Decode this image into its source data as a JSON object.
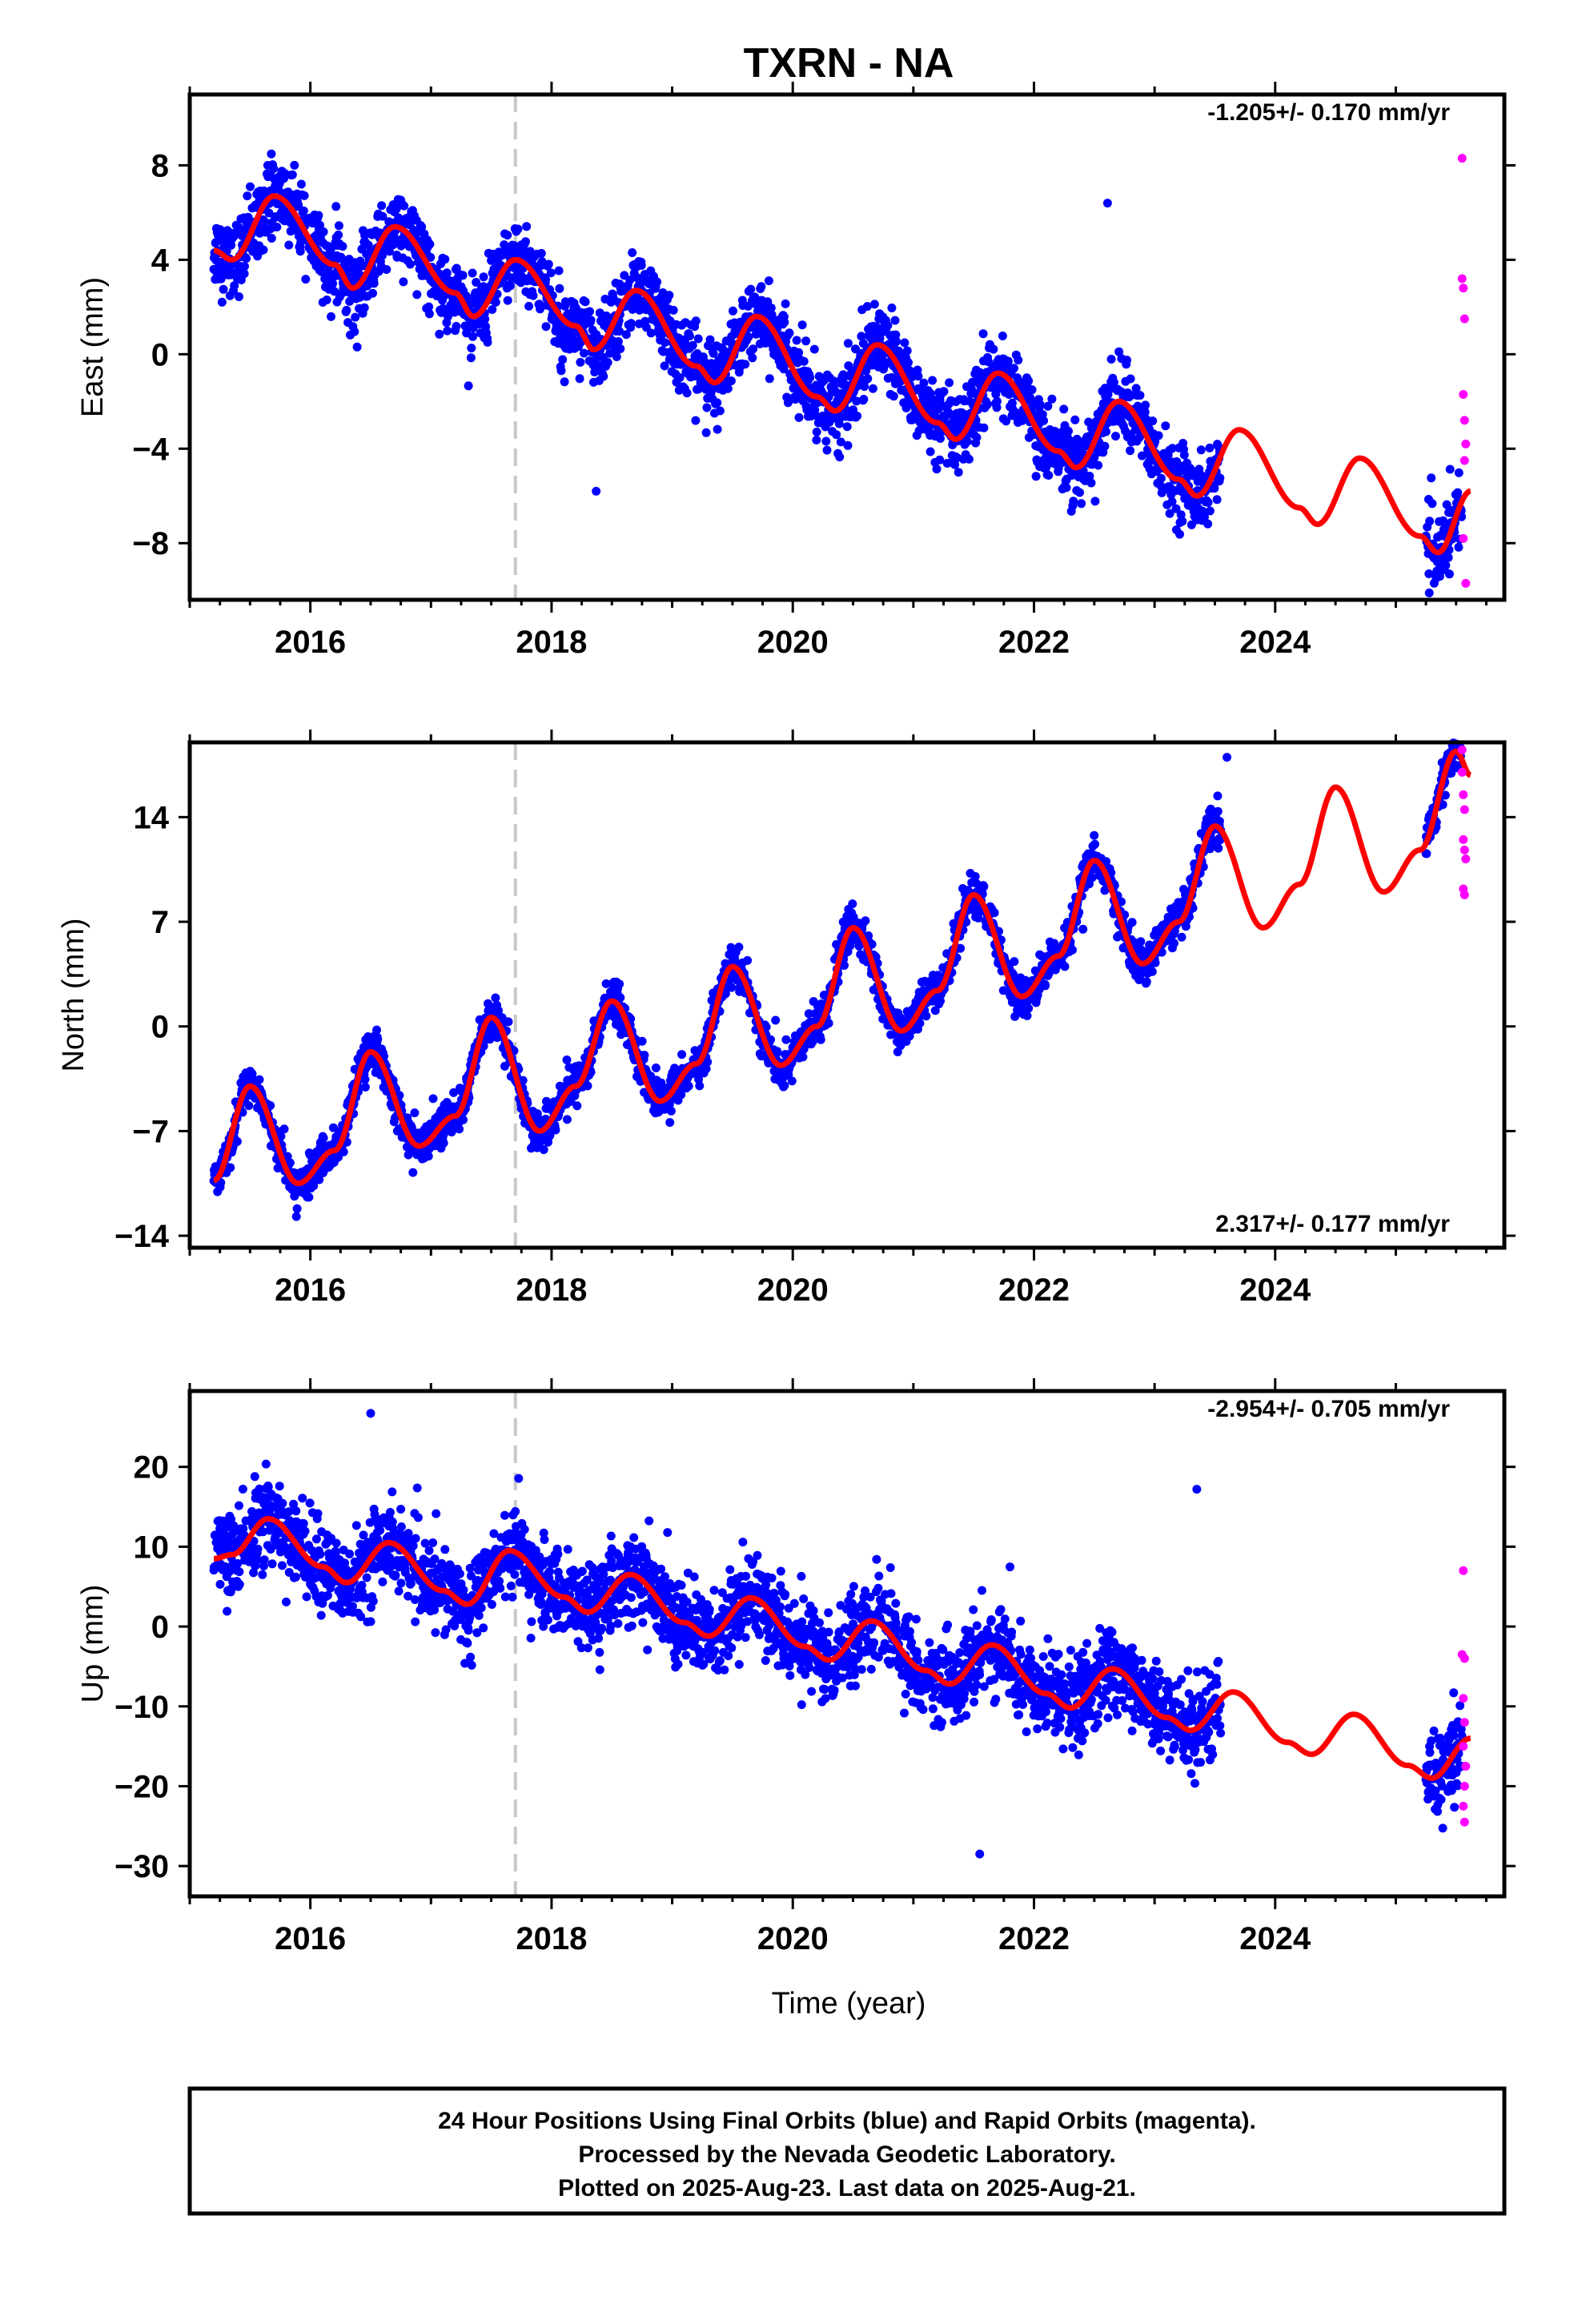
{
  "title": "TXRN - NA",
  "xlabel": "Time (year)",
  "footer": {
    "line1": "24 Hour Positions Using Final Orbits (blue) and Rapid Orbits (magenta).",
    "line2": "Processed by the Nevada Geodetic Laboratory.",
    "line3": "Plotted on 2025-Aug-23. Last data on 2025-Aug-21."
  },
  "colors": {
    "final_orbits": "#0000ff",
    "rapid_orbits": "#ff00ff",
    "model": "#ff0000",
    "event_line": "#c8c8c8"
  },
  "chart_data": [
    {
      "type": "scatter",
      "component": "east",
      "ylabel": "East (mm)",
      "rate_label": "-1.205+/- 0.170 mm/yr",
      "xlim": [
        2015.0,
        2025.9
      ],
      "ylim": [
        -10.4,
        11
      ],
      "xticks": [
        2016,
        2018,
        2020,
        2022,
        2024
      ],
      "yticks": [
        -8,
        -4,
        0,
        4,
        8
      ],
      "event_line_x": 2017.7,
      "grid": false,
      "rapid_points": [
        [
          2025.55,
          8.3
        ],
        [
          2025.55,
          3.2
        ],
        [
          2025.56,
          2.8
        ],
        [
          2025.57,
          1.5
        ],
        [
          2025.56,
          -1.7
        ],
        [
          2025.57,
          -2.8
        ],
        [
          2025.58,
          -3.8
        ],
        [
          2025.57,
          -4.5
        ],
        [
          2025.56,
          -7.8
        ],
        [
          2025.58,
          -9.7
        ]
      ],
      "outliers": [
        [
          2018.37,
          -5.8
        ],
        [
          2022.61,
          6.4
        ]
      ],
      "model_knots": [
        [
          2015.2,
          4.4
        ],
        [
          2015.35,
          4.0
        ],
        [
          2015.7,
          6.7
        ],
        [
          2016.2,
          3.8
        ],
        [
          2016.35,
          2.8
        ],
        [
          2016.7,
          5.4
        ],
        [
          2017.2,
          2.6
        ],
        [
          2017.35,
          1.6
        ],
        [
          2017.7,
          4.0
        ],
        [
          2018.2,
          1.2
        ],
        [
          2018.35,
          0.2
        ],
        [
          2018.7,
          2.7
        ],
        [
          2019.2,
          -0.5
        ],
        [
          2019.35,
          -1.2
        ],
        [
          2019.7,
          1.6
        ],
        [
          2020.2,
          -1.8
        ],
        [
          2020.35,
          -2.4
        ],
        [
          2020.7,
          0.4
        ],
        [
          2021.2,
          -2.9
        ],
        [
          2021.35,
          -3.6
        ],
        [
          2021.7,
          -0.8
        ],
        [
          2022.2,
          -4.1
        ],
        [
          2022.35,
          -4.8
        ],
        [
          2022.7,
          -2.0
        ],
        [
          2023.2,
          -5.3
        ],
        [
          2023.35,
          -6.0
        ],
        [
          2023.7,
          -3.2
        ],
        [
          2024.2,
          -6.5
        ],
        [
          2024.35,
          -7.2
        ],
        [
          2024.7,
          -4.4
        ],
        [
          2025.2,
          -7.7
        ],
        [
          2025.35,
          -8.4
        ],
        [
          2025.62,
          -5.8
        ]
      ],
      "segments": [
        [
          2015.2,
          2023.55
        ],
        [
          2025.25,
          2025.55
        ]
      ],
      "scatter_sigma": 1.4
    },
    {
      "type": "scatter",
      "component": "north",
      "ylabel": "North (mm)",
      "rate_label": "2.317+/- 0.177 mm/yr",
      "xlim": [
        2015.0,
        2025.9
      ],
      "ylim": [
        -14.8,
        19
      ],
      "xticks": [
        2016,
        2018,
        2020,
        2022,
        2024
      ],
      "yticks": [
        -14,
        -7,
        0,
        7,
        14
      ],
      "event_line_x": 2017.7,
      "grid": false,
      "rapid_points": [
        [
          2025.55,
          18.5
        ],
        [
          2025.55,
          17.0
        ],
        [
          2025.56,
          15.5
        ],
        [
          2025.57,
          14.5
        ],
        [
          2025.56,
          12.5
        ],
        [
          2025.57,
          11.8
        ],
        [
          2025.58,
          11.2
        ],
        [
          2025.56,
          9.2
        ],
        [
          2025.57,
          8.8
        ]
      ],
      "outliers": [
        [
          2023.6,
          18.0
        ]
      ],
      "model_knots": [
        [
          2015.2,
          -10.3
        ],
        [
          2015.5,
          -4.0
        ],
        [
          2015.9,
          -10.5
        ],
        [
          2016.2,
          -8.3
        ],
        [
          2016.5,
          -1.7
        ],
        [
          2016.9,
          -8.0
        ],
        [
          2017.2,
          -6.0
        ],
        [
          2017.5,
          0.6
        ],
        [
          2017.9,
          -7.0
        ],
        [
          2018.2,
          -4.0
        ],
        [
          2018.5,
          1.7
        ],
        [
          2018.9,
          -5.0
        ],
        [
          2019.2,
          -2.5
        ],
        [
          2019.5,
          4.0
        ],
        [
          2019.9,
          -2.6
        ],
        [
          2020.2,
          0.0
        ],
        [
          2020.5,
          6.6
        ],
        [
          2020.9,
          -0.3
        ],
        [
          2021.2,
          2.4
        ],
        [
          2021.5,
          8.8
        ],
        [
          2021.9,
          2.0
        ],
        [
          2022.2,
          4.7
        ],
        [
          2022.5,
          11.1
        ],
        [
          2022.9,
          4.2
        ],
        [
          2023.2,
          7.0
        ],
        [
          2023.5,
          13.4
        ],
        [
          2023.9,
          6.6
        ],
        [
          2024.2,
          9.5
        ],
        [
          2024.5,
          16.0
        ],
        [
          2024.9,
          9.0
        ],
        [
          2025.2,
          11.8
        ],
        [
          2025.5,
          18.4
        ],
        [
          2025.62,
          16.8
        ]
      ],
      "segments": [
        [
          2015.2,
          2023.55
        ],
        [
          2025.25,
          2025.55
        ]
      ],
      "scatter_sigma": 1.2
    },
    {
      "type": "scatter",
      "component": "up",
      "ylabel": "Up (mm)",
      "rate_label": "-2.954+/- 0.705 mm/yr",
      "xlim": [
        2015.0,
        2025.9
      ],
      "ylim": [
        -33.8,
        29.5
      ],
      "xticks": [
        2016,
        2018,
        2020,
        2022,
        2024
      ],
      "yticks": [
        -30,
        -20,
        -10,
        0,
        10,
        20
      ],
      "event_line_x": 2017.7,
      "grid": false,
      "rapid_points": [
        [
          2025.56,
          7.0
        ],
        [
          2025.55,
          -3.5
        ],
        [
          2025.57,
          -4.0
        ],
        [
          2025.56,
          -9.0
        ],
        [
          2025.57,
          -12.0
        ],
        [
          2025.56,
          -15.0
        ],
        [
          2025.58,
          -17.5
        ],
        [
          2025.57,
          -20.0
        ],
        [
          2025.56,
          -22.5
        ],
        [
          2025.57,
          -24.5
        ]
      ],
      "outliers": [
        [
          2021.55,
          -28.5
        ],
        [
          2023.35,
          17.2
        ],
        [
          2016.5,
          26.7
        ]
      ],
      "model_knots": [
        [
          2015.2,
          8.5
        ],
        [
          2015.35,
          9.0
        ],
        [
          2015.65,
          13.5
        ],
        [
          2016.1,
          7.5
        ],
        [
          2016.3,
          5.5
        ],
        [
          2016.65,
          10.5
        ],
        [
          2017.1,
          4.5
        ],
        [
          2017.3,
          2.8
        ],
        [
          2017.65,
          9.5
        ],
        [
          2018.1,
          3.7
        ],
        [
          2018.3,
          1.8
        ],
        [
          2018.65,
          6.5
        ],
        [
          2019.1,
          0.5
        ],
        [
          2019.3,
          -1.2
        ],
        [
          2019.65,
          3.6
        ],
        [
          2020.1,
          -2.5
        ],
        [
          2020.3,
          -4.2
        ],
        [
          2020.65,
          0.7
        ],
        [
          2021.1,
          -5.5
        ],
        [
          2021.3,
          -7.2
        ],
        [
          2021.65,
          -2.3
        ],
        [
          2022.1,
          -8.4
        ],
        [
          2022.3,
          -10.2
        ],
        [
          2022.65,
          -5.3
        ],
        [
          2023.1,
          -11.4
        ],
        [
          2023.3,
          -13.0
        ],
        [
          2023.65,
          -8.2
        ],
        [
          2024.1,
          -14.5
        ],
        [
          2024.3,
          -16.0
        ],
        [
          2024.65,
          -11.0
        ],
        [
          2025.1,
          -17.4
        ],
        [
          2025.3,
          -19.0
        ],
        [
          2025.62,
          -14.0
        ]
      ],
      "segments": [
        [
          2015.2,
          2023.55
        ],
        [
          2025.25,
          2025.55
        ]
      ],
      "scatter_sigma": 4.8
    }
  ]
}
